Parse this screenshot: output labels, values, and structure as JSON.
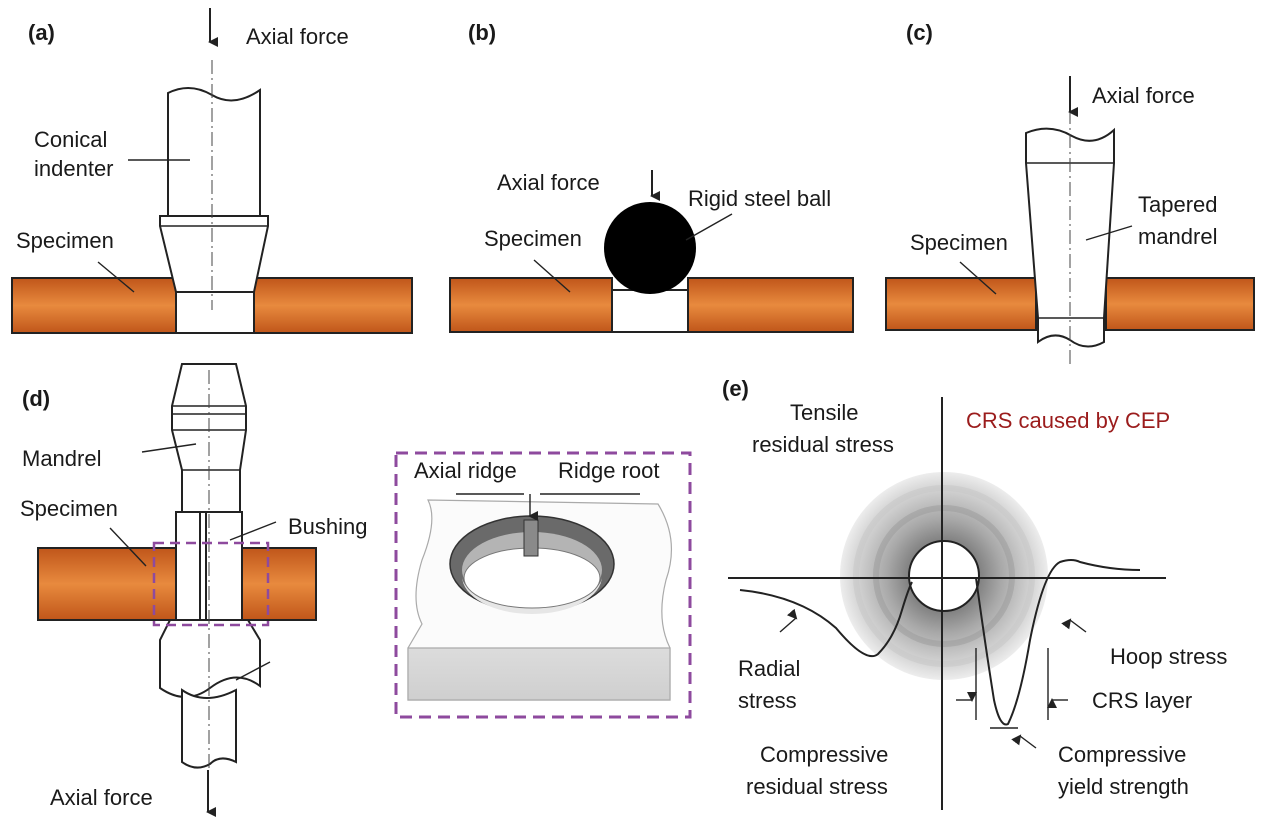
{
  "panels": {
    "a": {
      "label": "(a)",
      "axial_force": "Axial force",
      "indenter_l1": "Conical",
      "indenter_l2": "indenter",
      "specimen": "Specimen"
    },
    "b": {
      "label": "(b)",
      "axial_force": "Axial force",
      "ball": "Rigid steel ball",
      "specimen": "Specimen"
    },
    "c": {
      "label": "(c)",
      "axial_force": "Axial force",
      "mandrel_l1": "Tapered",
      "mandrel_l2": "mandrel",
      "specimen": "Specimen"
    },
    "d": {
      "label": "(d)",
      "mandrel": "Mandrel",
      "specimen": "Specimen",
      "bushing": "Bushing",
      "axial_force": "Axial force",
      "inset_ridge": "Axial ridge",
      "inset_root": "Ridge root"
    },
    "e": {
      "label": "(e)",
      "title": "CRS caused by CEP",
      "tensile_l1": "Tensile",
      "tensile_l2": "residual stress",
      "radial_l1": "Radial",
      "radial_l2": "stress",
      "hoop": "Hoop stress",
      "crs_layer": "CRS layer",
      "compressive_l1": "Compressive",
      "compressive_l2": "residual stress",
      "yield_l1": "Compressive",
      "yield_l2": "yield strength"
    }
  },
  "colors": {
    "specimen": "#d2691e",
    "specimen_light": "#e89048",
    "inset_border": "#8e4a9e",
    "title_red": "#9b1c1c",
    "ball": "#000000"
  }
}
